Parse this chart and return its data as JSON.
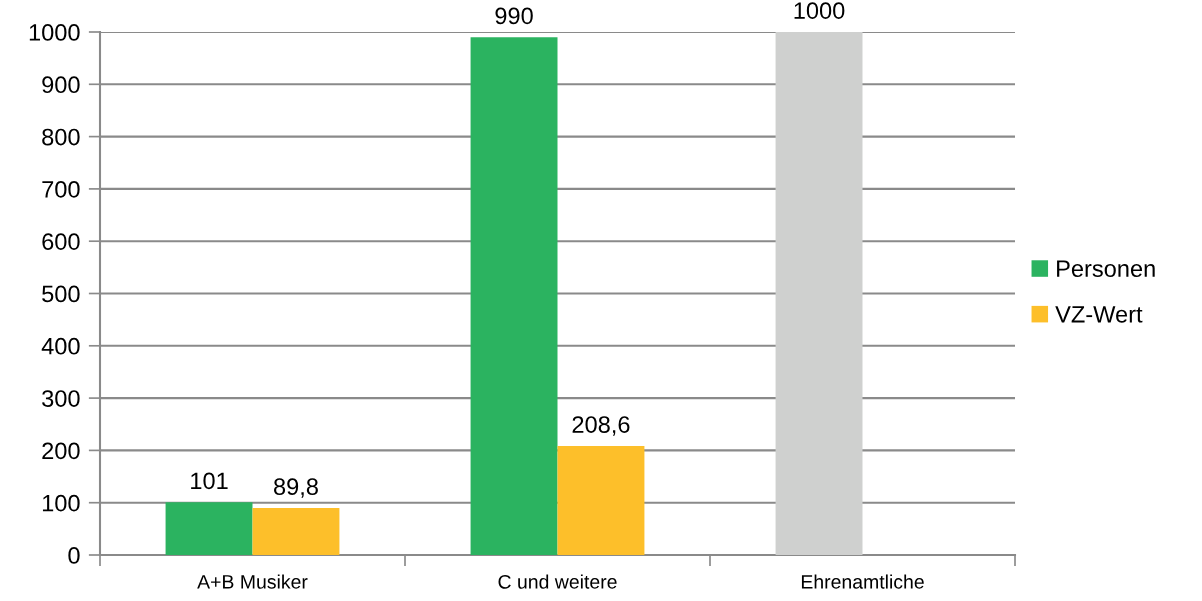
{
  "chart_data": {
    "type": "bar",
    "categories": [
      "A+B Musiker",
      "C und weitere",
      "Ehrenamtliche"
    ],
    "series": [
      {
        "name": "Personen",
        "color": "#2bb360",
        "colors": [
          "#2bb360",
          "#2bb360",
          "#cfd0cf"
        ],
        "values": [
          101,
          990,
          1000
        ],
        "value_labels": [
          "101",
          "990",
          "1000"
        ]
      },
      {
        "name": "VZ-Wert",
        "color": "#fdbf2a",
        "values": [
          89.8,
          208.6,
          null
        ],
        "value_labels": [
          "89,8",
          "208,6",
          null
        ]
      }
    ],
    "ylim": [
      0,
      1000
    ],
    "yticks": [
      0,
      100,
      200,
      300,
      400,
      500,
      600,
      700,
      800,
      900,
      1000
    ],
    "grid": "y",
    "legend": "right"
  }
}
